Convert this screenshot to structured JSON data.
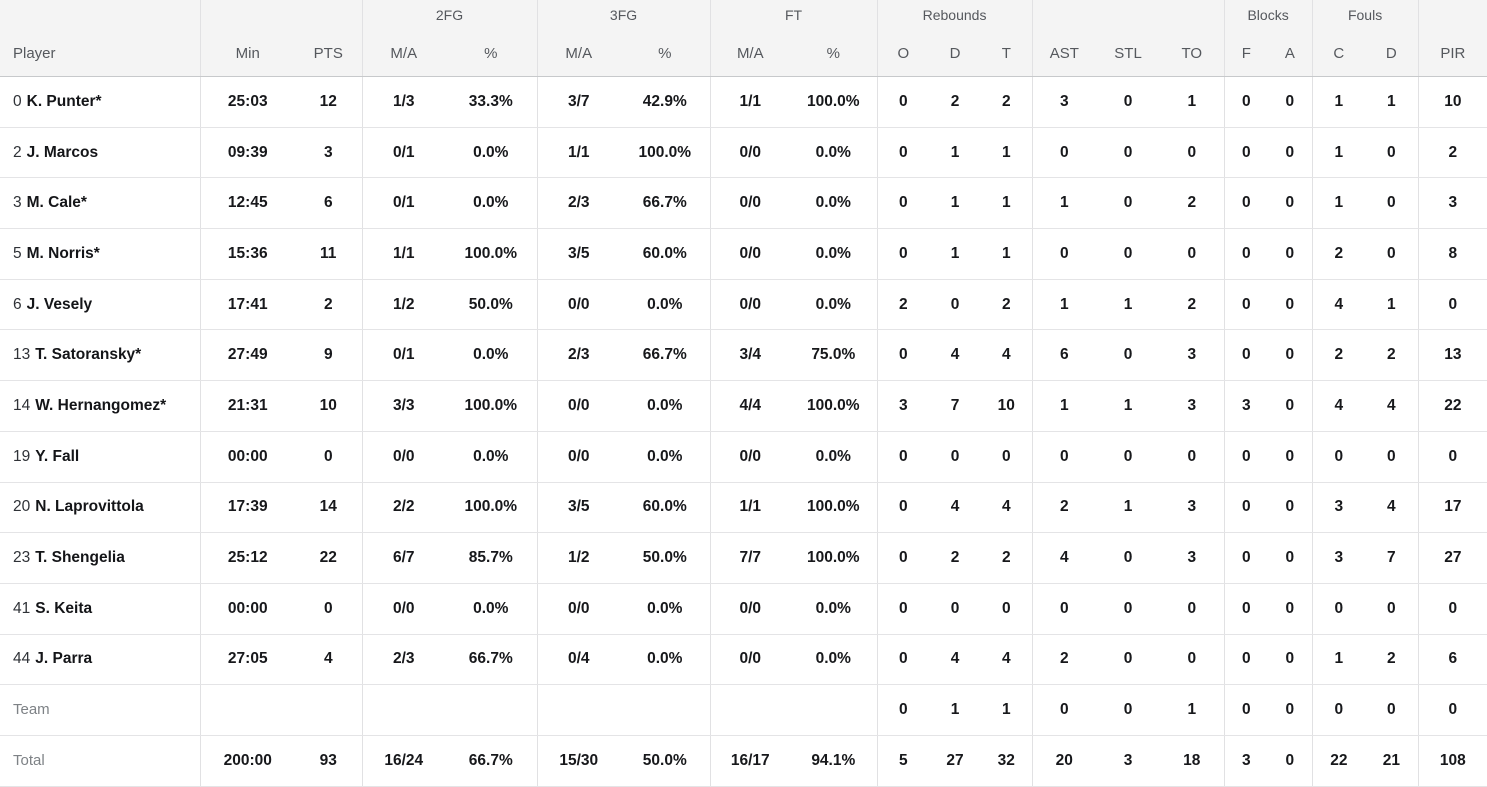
{
  "chart_data": {
    "type": "table",
    "group_headers": [
      {
        "label": "",
        "colspan": 1
      },
      {
        "label": "",
        "colspan": 2
      },
      {
        "label": "2FG",
        "colspan": 2
      },
      {
        "label": "3FG",
        "colspan": 2
      },
      {
        "label": "FT",
        "colspan": 2
      },
      {
        "label": "Rebounds",
        "colspan": 3
      },
      {
        "label": "",
        "colspan": 3
      },
      {
        "label": "Blocks",
        "colspan": 2
      },
      {
        "label": "Fouls",
        "colspan": 2
      },
      {
        "label": "",
        "colspan": 1
      }
    ],
    "columns": [
      "Player",
      "Min",
      "PTS",
      "M/A",
      "%",
      "M/A",
      "%",
      "M/A",
      "%",
      "O",
      "D",
      "T",
      "AST",
      "STL",
      "TO",
      "F",
      "A",
      "C",
      "D",
      "PIR"
    ],
    "rows": [
      {
        "number": "0",
        "name": "K. Punter*",
        "muted": false,
        "values": [
          "25:03",
          "12",
          "1/3",
          "33.3%",
          "3/7",
          "42.9%",
          "1/1",
          "100.0%",
          "0",
          "2",
          "2",
          "3",
          "0",
          "1",
          "0",
          "0",
          "1",
          "1",
          "10"
        ]
      },
      {
        "number": "2",
        "name": "J. Marcos",
        "muted": false,
        "values": [
          "09:39",
          "3",
          "0/1",
          "0.0%",
          "1/1",
          "100.0%",
          "0/0",
          "0.0%",
          "0",
          "1",
          "1",
          "0",
          "0",
          "0",
          "0",
          "0",
          "1",
          "0",
          "2"
        ]
      },
      {
        "number": "3",
        "name": "M. Cale*",
        "muted": false,
        "values": [
          "12:45",
          "6",
          "0/1",
          "0.0%",
          "2/3",
          "66.7%",
          "0/0",
          "0.0%",
          "0",
          "1",
          "1",
          "1",
          "0",
          "2",
          "0",
          "0",
          "1",
          "0",
          "3"
        ]
      },
      {
        "number": "5",
        "name": "M. Norris*",
        "muted": false,
        "values": [
          "15:36",
          "11",
          "1/1",
          "100.0%",
          "3/5",
          "60.0%",
          "0/0",
          "0.0%",
          "0",
          "1",
          "1",
          "0",
          "0",
          "0",
          "0",
          "0",
          "2",
          "0",
          "8"
        ]
      },
      {
        "number": "6",
        "name": "J. Vesely",
        "muted": false,
        "values": [
          "17:41",
          "2",
          "1/2",
          "50.0%",
          "0/0",
          "0.0%",
          "0/0",
          "0.0%",
          "2",
          "0",
          "2",
          "1",
          "1",
          "2",
          "0",
          "0",
          "4",
          "1",
          "0"
        ]
      },
      {
        "number": "13",
        "name": "T. Satoransky*",
        "muted": false,
        "values": [
          "27:49",
          "9",
          "0/1",
          "0.0%",
          "2/3",
          "66.7%",
          "3/4",
          "75.0%",
          "0",
          "4",
          "4",
          "6",
          "0",
          "3",
          "0",
          "0",
          "2",
          "2",
          "13"
        ]
      },
      {
        "number": "14",
        "name": "W. Hernangomez*",
        "muted": false,
        "values": [
          "21:31",
          "10",
          "3/3",
          "100.0%",
          "0/0",
          "0.0%",
          "4/4",
          "100.0%",
          "3",
          "7",
          "10",
          "1",
          "1",
          "3",
          "3",
          "0",
          "4",
          "4",
          "22"
        ]
      },
      {
        "number": "19",
        "name": "Y. Fall",
        "muted": false,
        "values": [
          "00:00",
          "0",
          "0/0",
          "0.0%",
          "0/0",
          "0.0%",
          "0/0",
          "0.0%",
          "0",
          "0",
          "0",
          "0",
          "0",
          "0",
          "0",
          "0",
          "0",
          "0",
          "0"
        ]
      },
      {
        "number": "20",
        "name": "N. Laprovittola",
        "muted": false,
        "values": [
          "17:39",
          "14",
          "2/2",
          "100.0%",
          "3/5",
          "60.0%",
          "1/1",
          "100.0%",
          "0",
          "4",
          "4",
          "2",
          "1",
          "3",
          "0",
          "0",
          "3",
          "4",
          "17"
        ]
      },
      {
        "number": "23",
        "name": "T. Shengelia",
        "muted": false,
        "values": [
          "25:12",
          "22",
          "6/7",
          "85.7%",
          "1/2",
          "50.0%",
          "7/7",
          "100.0%",
          "0",
          "2",
          "2",
          "4",
          "0",
          "3",
          "0",
          "0",
          "3",
          "7",
          "27"
        ]
      },
      {
        "number": "41",
        "name": "S. Keita",
        "muted": false,
        "values": [
          "00:00",
          "0",
          "0/0",
          "0.0%",
          "0/0",
          "0.0%",
          "0/0",
          "0.0%",
          "0",
          "0",
          "0",
          "0",
          "0",
          "0",
          "0",
          "0",
          "0",
          "0",
          "0"
        ]
      },
      {
        "number": "44",
        "name": "J. Parra",
        "muted": false,
        "values": [
          "27:05",
          "4",
          "2/3",
          "66.7%",
          "0/4",
          "0.0%",
          "0/0",
          "0.0%",
          "0",
          "4",
          "4",
          "2",
          "0",
          "0",
          "0",
          "0",
          "1",
          "2",
          "6"
        ]
      },
      {
        "number": "",
        "name": "Team",
        "muted": true,
        "values": [
          "",
          "",
          "",
          "",
          "",
          "",
          "",
          "",
          "0",
          "1",
          "1",
          "0",
          "0",
          "1",
          "0",
          "0",
          "0",
          "0",
          "0"
        ]
      },
      {
        "number": "",
        "name": "Total",
        "muted": true,
        "values": [
          "200:00",
          "93",
          "16/24",
          "66.7%",
          "15/30",
          "50.0%",
          "16/17",
          "94.1%",
          "5",
          "27",
          "32",
          "20",
          "3",
          "18",
          "3",
          "0",
          "22",
          "21",
          "108"
        ]
      }
    ]
  },
  "colors": {
    "header_bg": "#f4f4f4",
    "header_text": "#55585d",
    "header_bottom_border": "#c7c9cb",
    "row_border": "#e4e4e6",
    "group_border": "#e1e1e3",
    "text": "#17181b",
    "muted_text": "#7e8286"
  }
}
